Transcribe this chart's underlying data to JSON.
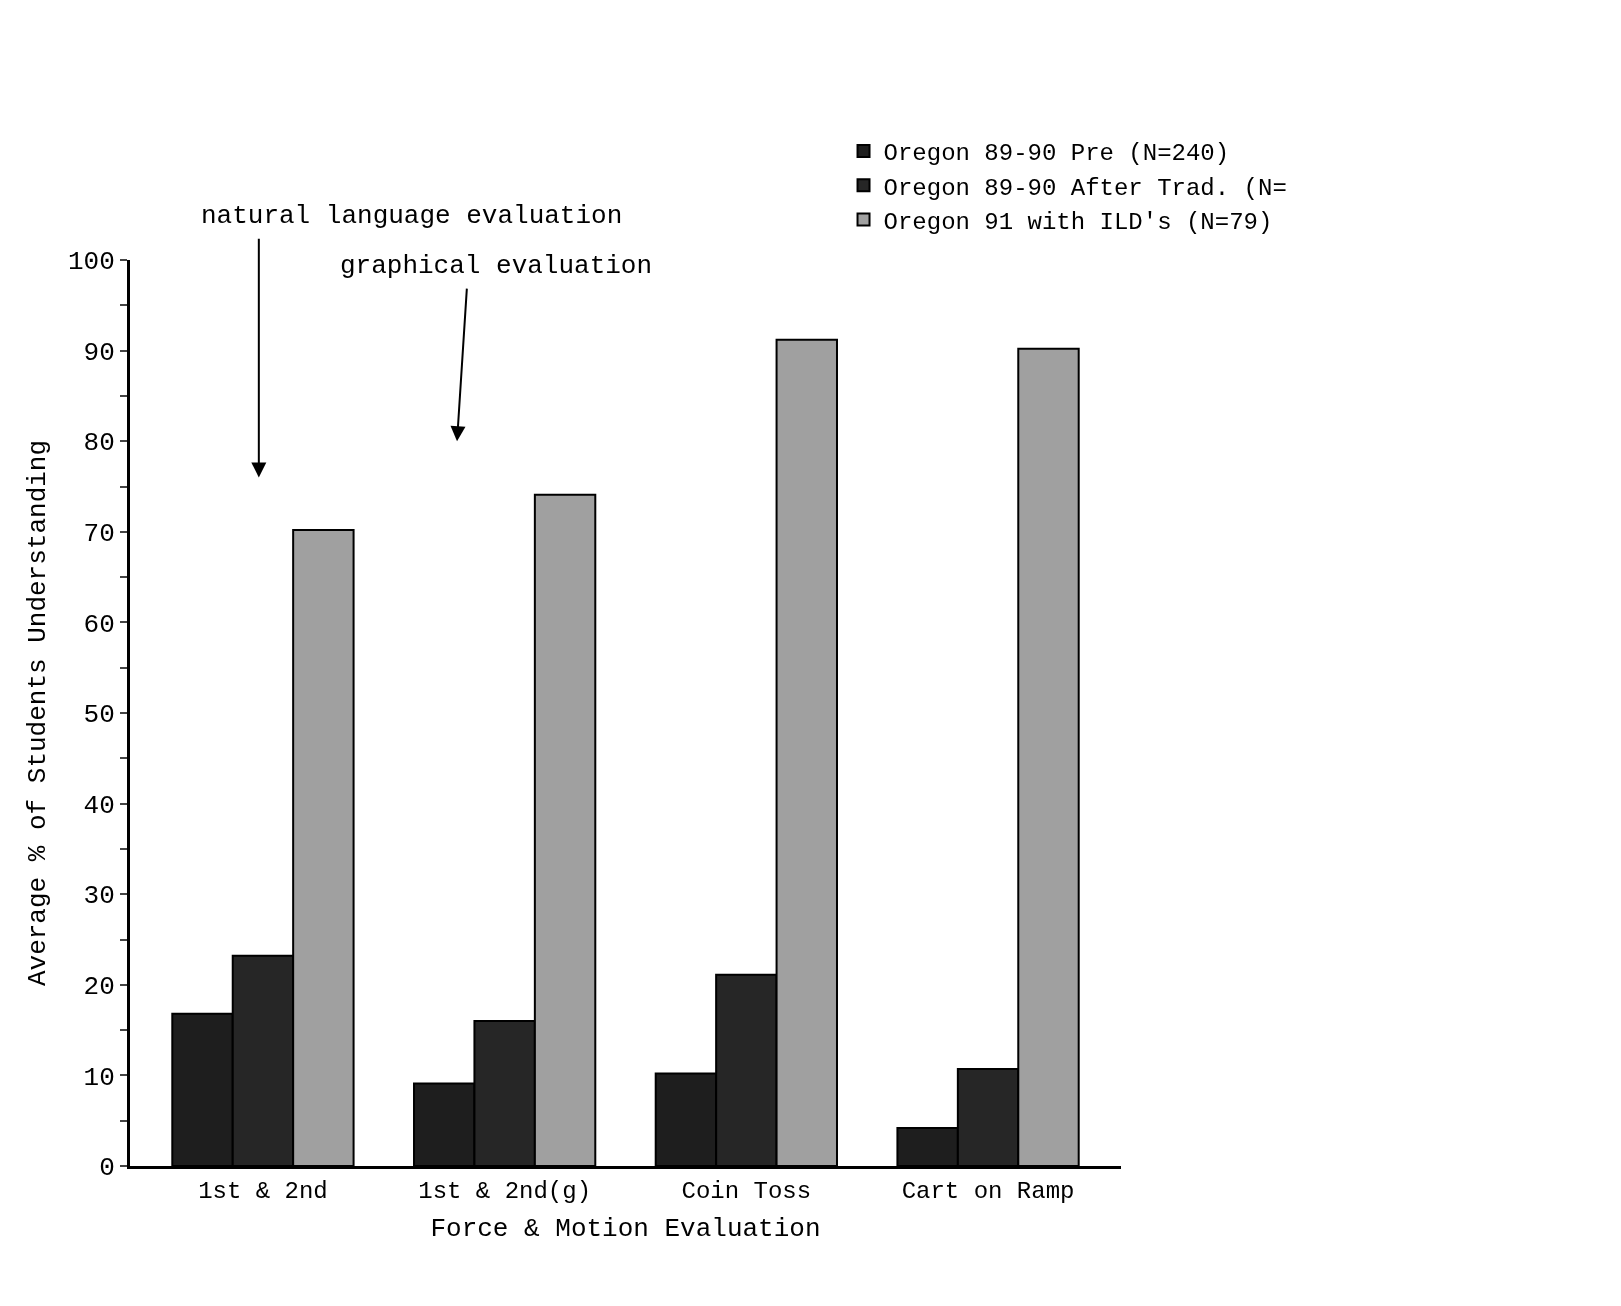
{
  "chart_data": {
    "type": "bar",
    "xlabel": "Force & Motion Evaluation",
    "ylabel": "Average % of Students Understanding",
    "categories": [
      "1st & 2nd",
      "1st & 2nd(g)",
      "Coin Toss",
      "Cart on Ramp"
    ],
    "series": [
      {
        "name": "Oregon 89-90 Pre (N=240)",
        "color": "#1e1e1e",
        "values": [
          16.8,
          9.1,
          10.2,
          4.2
        ]
      },
      {
        "name": "Oregon 89-90 After Trad. (N=",
        "color": "#262626",
        "values": [
          23.2,
          16.0,
          21.1,
          10.7
        ]
      },
      {
        "name": "Oregon 91 with ILD's (N=79)",
        "color": "#a0a0a0",
        "values": [
          70.2,
          74.1,
          91.2,
          90.2
        ]
      }
    ],
    "ylim": [
      0,
      100
    ],
    "yticks": [
      0,
      {
        "value": 5,
        "label": null
      },
      10,
      {
        "value": 15,
        "label": null
      },
      20,
      {
        "value": 25,
        "label": null
      },
      30,
      {
        "value": 35,
        "label": null
      },
      40,
      {
        "value": 45,
        "label": null
      },
      50,
      {
        "value": 55,
        "label": null
      },
      60,
      {
        "value": 65,
        "label": null
      },
      70,
      {
        "value": 75,
        "label": null
      },
      80,
      {
        "value": 85,
        "label": null
      },
      90,
      {
        "value": 95,
        "label": null
      },
      100
    ],
    "annotations": [
      "natural language evaluation",
      "graphical evaluation"
    ],
    "legend": "top right"
  }
}
